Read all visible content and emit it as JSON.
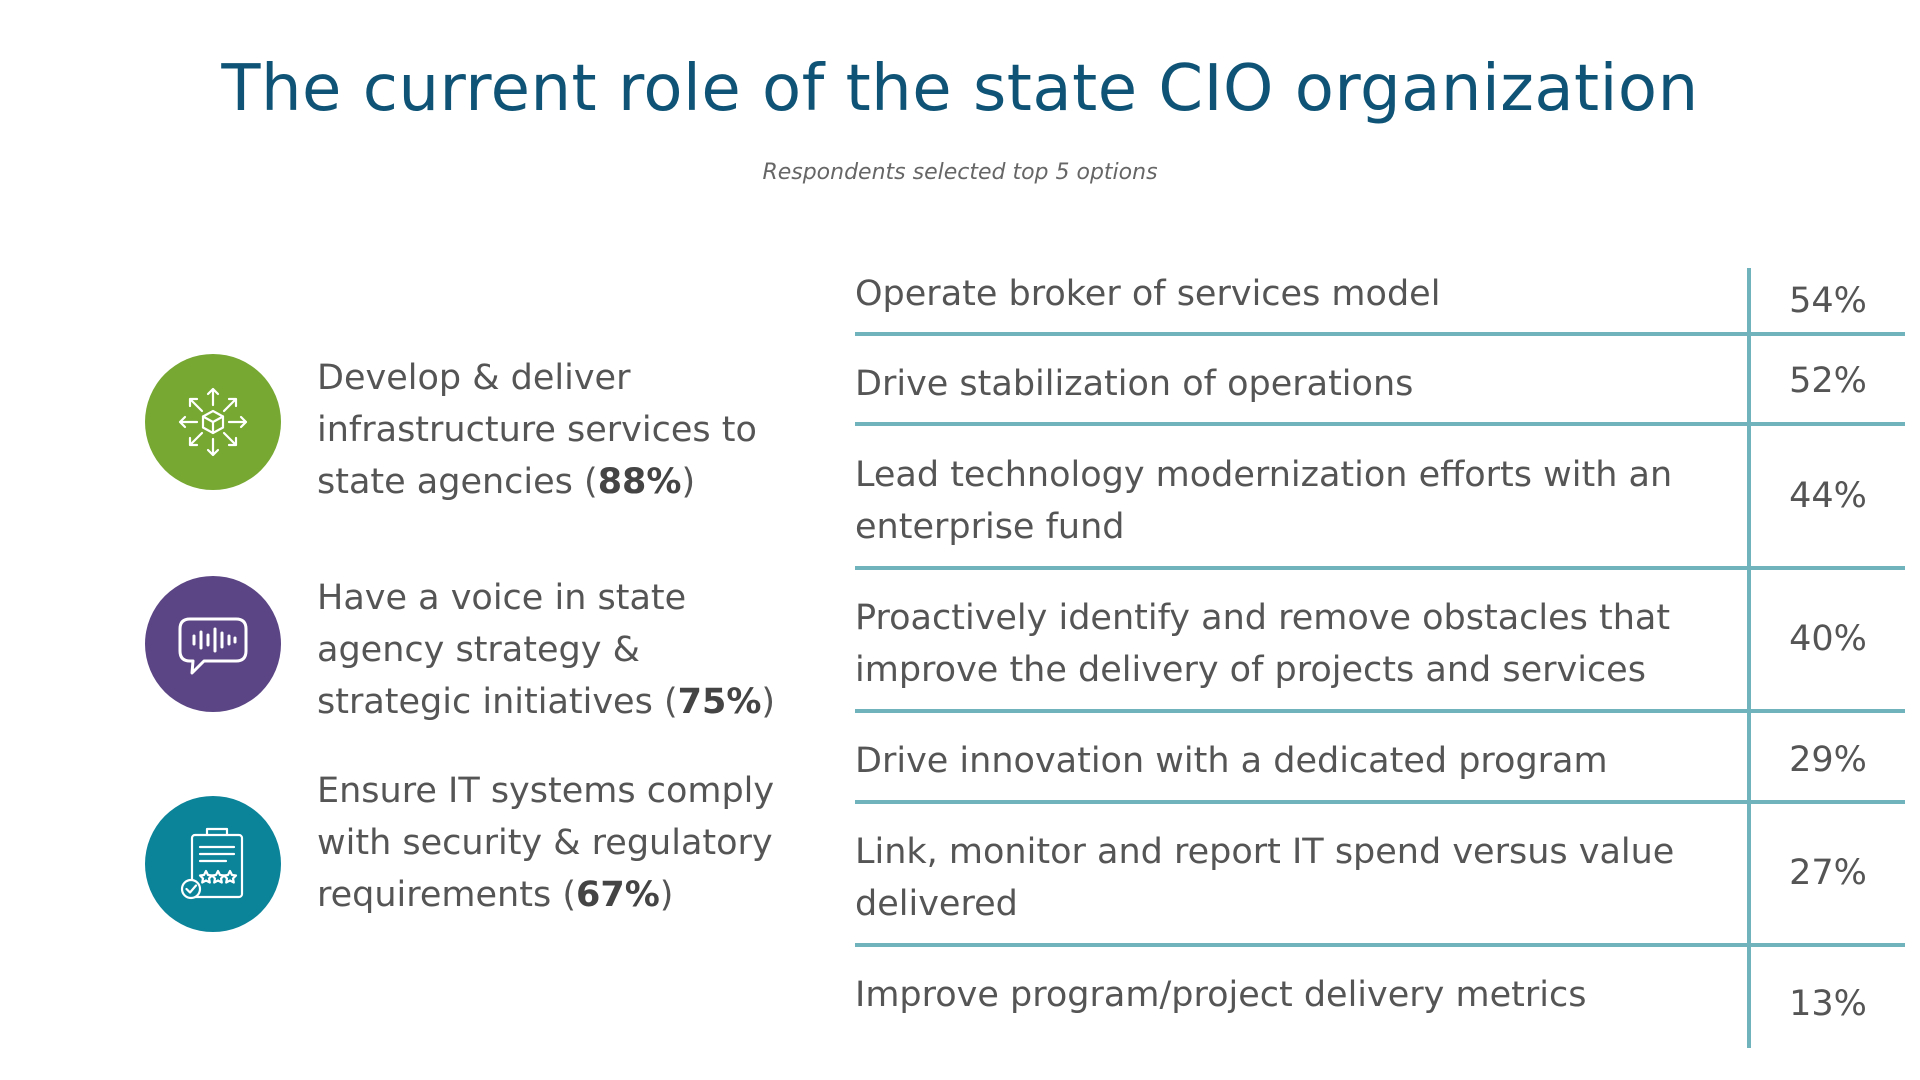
{
  "title": "The current role of the state CIO organization",
  "subtitle": "Respondents selected top 5 options",
  "colors": {
    "title": "#0f5476",
    "table_lines": "#71b3bd",
    "icon_green": "#76a832",
    "icon_purple": "#5b4584",
    "icon_teal": "#0b8399"
  },
  "highlights": [
    {
      "text": "Develop & deliver infrastructure services to state agencies (",
      "value": "88%",
      "close": ")",
      "icon": "distribution-cube-icon"
    },
    {
      "text": "Have a voice in state agency strategy & strategic initiatives (",
      "value": "75%",
      "close": ")",
      "icon": "voice-chat-icon"
    },
    {
      "text": "Ensure IT systems comply with security & regulatory requirements (",
      "value": "67%",
      "close": ")",
      "icon": "compliance-clipboard-icon"
    }
  ],
  "chart_data": {
    "type": "table",
    "title": "The current role of the state CIO organization",
    "subtitle": "Respondents selected top 5 options",
    "categories": [
      "Operate broker of services model",
      "Drive stabilization of operations",
      "Lead technology modernization efforts with an enterprise fund",
      "Proactively identify and remove obstacles that improve the delivery of projects and services",
      "Drive innovation with a dedicated program",
      "Link, monitor and report IT spend versus value delivered",
      "Improve program/project delivery metrics"
    ],
    "values": [
      54,
      52,
      44,
      40,
      29,
      27,
      13
    ],
    "value_labels": [
      "54%",
      "52%",
      "44%",
      "40%",
      "29%",
      "27%",
      "13%"
    ],
    "highlight_categories": [
      "Develop & deliver infrastructure services to state agencies",
      "Have a voice in state agency strategy & strategic initiatives",
      "Ensure IT systems comply with security & regulatory requirements"
    ],
    "highlight_values": [
      88,
      75,
      67
    ]
  }
}
